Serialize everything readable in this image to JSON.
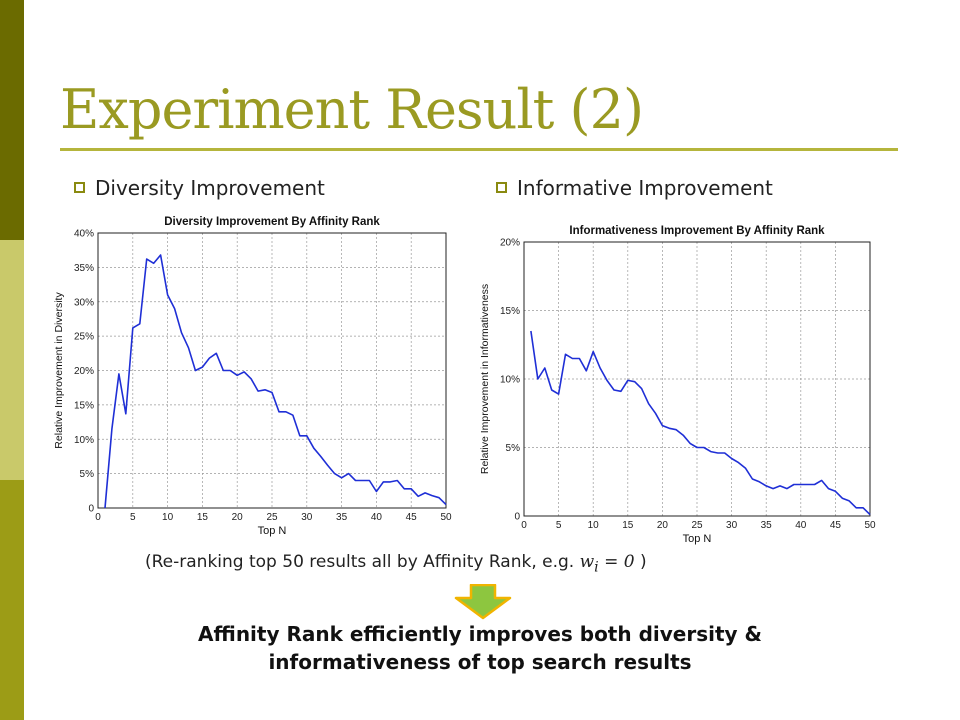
{
  "slide": {
    "title": "Experiment Result (2)",
    "bullets": [
      "Diversity Improvement",
      "Informative Improvement"
    ],
    "note_prefix": "(Re-ranking top 50 results all by Affinity Rank, e.g.",
    "note_formula": "w",
    "note_formula_sub": "i",
    "note_formula_rest": "= 0",
    "note_suffix": ")",
    "conclusion_line1": "Affinity Rank efficiently improves both diversity &",
    "conclusion_line2": "informativeness of top search results",
    "colors": {
      "title": "#9a9a22",
      "line": "#1f2fd6",
      "arrow": "#8dc63f",
      "arrow_border": "#f0b400"
    }
  },
  "chart_data": [
    {
      "type": "line",
      "title": "Diversity Improvement By Affinity Rank",
      "xlabel": "Top N",
      "ylabel": "Relative Improvement in Diversity",
      "xlim": [
        0,
        50
      ],
      "ylim": [
        0,
        40
      ],
      "xticks": [
        0,
        5,
        10,
        15,
        20,
        25,
        30,
        35,
        40,
        45,
        50
      ],
      "yticks": [
        0,
        5,
        10,
        15,
        20,
        25,
        30,
        35,
        40
      ],
      "ytick_labels": [
        "0",
        "5%",
        "10%",
        "15%",
        "20%",
        "25%",
        "30%",
        "35%",
        "40%"
      ],
      "grid": true,
      "series": [
        {
          "x": [
            1,
            2,
            3,
            4,
            5,
            6,
            7,
            8,
            9,
            10,
            11,
            12,
            13,
            14,
            15,
            16,
            17,
            18,
            19,
            20,
            21,
            22,
            23,
            24,
            25,
            26,
            27,
            28,
            29,
            30,
            31,
            32,
            33,
            34,
            35,
            36,
            37,
            38,
            39,
            40,
            41,
            42,
            43,
            44,
            45,
            46,
            47,
            48,
            49,
            50
          ],
          "values": [
            0,
            11.5,
            19.5,
            13.7,
            26.2,
            26.8,
            36.2,
            35.6,
            36.8,
            31,
            29,
            25.5,
            23.3,
            20,
            20.5,
            21.8,
            22.5,
            20,
            20,
            19.3,
            19.8,
            18.8,
            17,
            17.2,
            16.8,
            14,
            14,
            13.5,
            10.5,
            10.5,
            8.7,
            7.5,
            6.2,
            5,
            4.4,
            5,
            4,
            4,
            4,
            2.4,
            3.8,
            3.8,
            4,
            2.8,
            2.8,
            1.7,
            2.2,
            1.8,
            1.5,
            0.5
          ]
        }
      ]
    },
    {
      "type": "line",
      "title": "Informativeness Improvement By Affinity Rank",
      "xlabel": "Top N",
      "ylabel": "Relative Improvement in Informativeness",
      "xlim": [
        0,
        50
      ],
      "ylim": [
        0,
        20
      ],
      "xticks": [
        0,
        5,
        10,
        15,
        20,
        25,
        30,
        35,
        40,
        45,
        50
      ],
      "yticks": [
        0,
        5,
        10,
        15,
        20
      ],
      "ytick_labels": [
        "0",
        "5%",
        "10%",
        "15%",
        "20%"
      ],
      "grid": true,
      "series": [
        {
          "x": [
            1,
            2,
            3,
            4,
            5,
            6,
            7,
            8,
            9,
            10,
            11,
            12,
            13,
            14,
            15,
            16,
            17,
            18,
            19,
            20,
            21,
            22,
            23,
            24,
            25,
            26,
            27,
            28,
            29,
            30,
            31,
            32,
            33,
            34,
            35,
            36,
            37,
            38,
            39,
            40,
            41,
            42,
            43,
            44,
            45,
            46,
            47,
            48,
            49,
            50
          ],
          "values": [
            13.5,
            10,
            10.8,
            9.2,
            8.9,
            11.8,
            11.5,
            11.5,
            10.6,
            12,
            10.8,
            9.9,
            9.2,
            9.1,
            9.9,
            9.8,
            9.3,
            8.2,
            7.5,
            6.6,
            6.4,
            6.3,
            5.9,
            5.3,
            5,
            5,
            4.7,
            4.6,
            4.6,
            4.2,
            3.9,
            3.5,
            2.7,
            2.5,
            2.2,
            2,
            2.2,
            2,
            2.3,
            2.3,
            2.3,
            2.3,
            2.6,
            2,
            1.8,
            1.3,
            1.1,
            0.6,
            0.6,
            0.1
          ]
        }
      ]
    }
  ]
}
